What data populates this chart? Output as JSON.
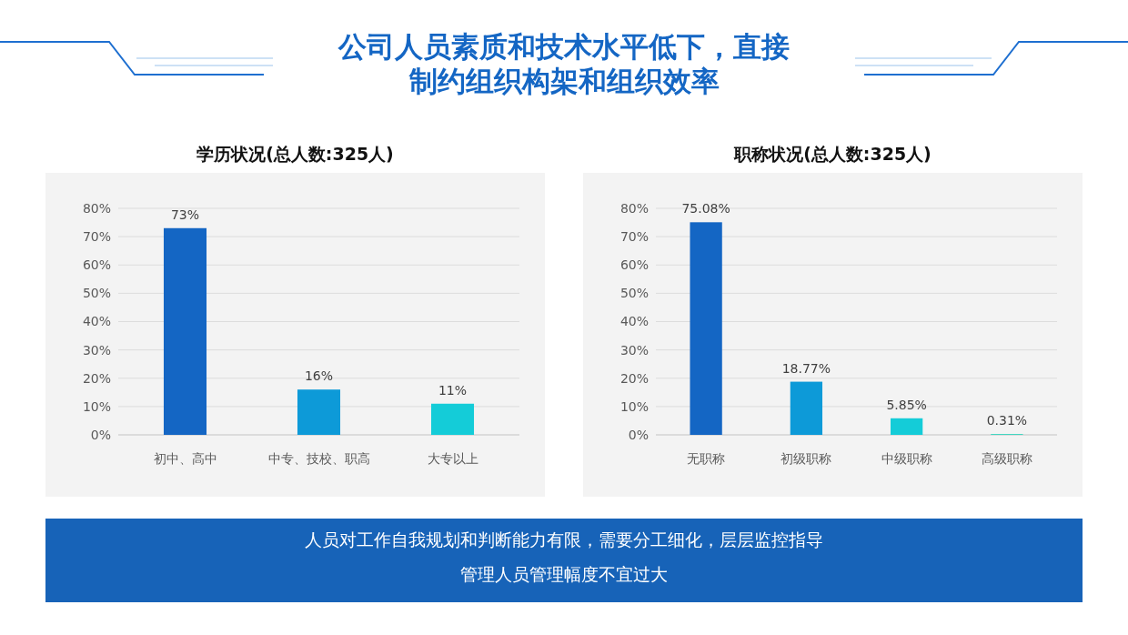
{
  "chart_data": [
    {
      "type": "other",
      "title": "公司人员素质和技术水平低下，直接制约组织构架和组织效率"
    },
    {
      "type": "bar",
      "title": "学历状况(总人数:325人)",
      "categories": [
        "初中、高中",
        "中专、技校、职高",
        "大专以上"
      ],
      "values": [
        73,
        16,
        11
      ],
      "colors": [
        "#1466c4",
        "#0d9ad8",
        "#14ccd8"
      ],
      "value_labels": [
        "73%",
        "16%",
        "11%"
      ],
      "ylim": [
        0,
        80
      ],
      "yticks": [
        {
          "value": 0,
          "label": "0%"
        },
        {
          "value": 10,
          "label": "10%"
        },
        {
          "value": 20,
          "label": "20%"
        },
        {
          "value": 30,
          "label": "30%"
        },
        {
          "value": 40,
          "label": "40%"
        },
        {
          "value": 50,
          "label": "50%"
        },
        {
          "value": 60,
          "label": "60%"
        },
        {
          "value": 70,
          "label": "70%"
        },
        {
          "value": 80,
          "label": "80%"
        }
      ],
      "grid": "y"
    },
    {
      "type": "bar",
      "title": "职称状况(总人数:325人)",
      "categories": [
        "无职称",
        "初级职称",
        "中级职称",
        "高级职称"
      ],
      "values": [
        75.08,
        18.77,
        5.85,
        0.31
      ],
      "colors": [
        "#1466c4",
        "#0d9ad8",
        "#14ccd8",
        "#3fd6c0"
      ],
      "value_labels": [
        "75.08%",
        "18.77%",
        "5.85%",
        "0.31%"
      ],
      "ylim": [
        0,
        80
      ],
      "yticks": [
        {
          "value": 0,
          "label": "0%"
        },
        {
          "value": 10,
          "label": "10%"
        },
        {
          "value": 20,
          "label": "20%"
        },
        {
          "value": 30,
          "label": "30%"
        },
        {
          "value": 40,
          "label": "40%"
        },
        {
          "value": 50,
          "label": "50%"
        },
        {
          "value": 60,
          "label": "60%"
        },
        {
          "value": 70,
          "label": "70%"
        },
        {
          "value": 80,
          "label": "80%"
        }
      ],
      "grid": "y"
    },
    {
      "type": "other",
      "annotations": [
        "人员对工作自我规划和判断能力有限，需要分工细化，层层监控指导",
        "管理人员管理幅度不宜过大"
      ]
    }
  ]
}
